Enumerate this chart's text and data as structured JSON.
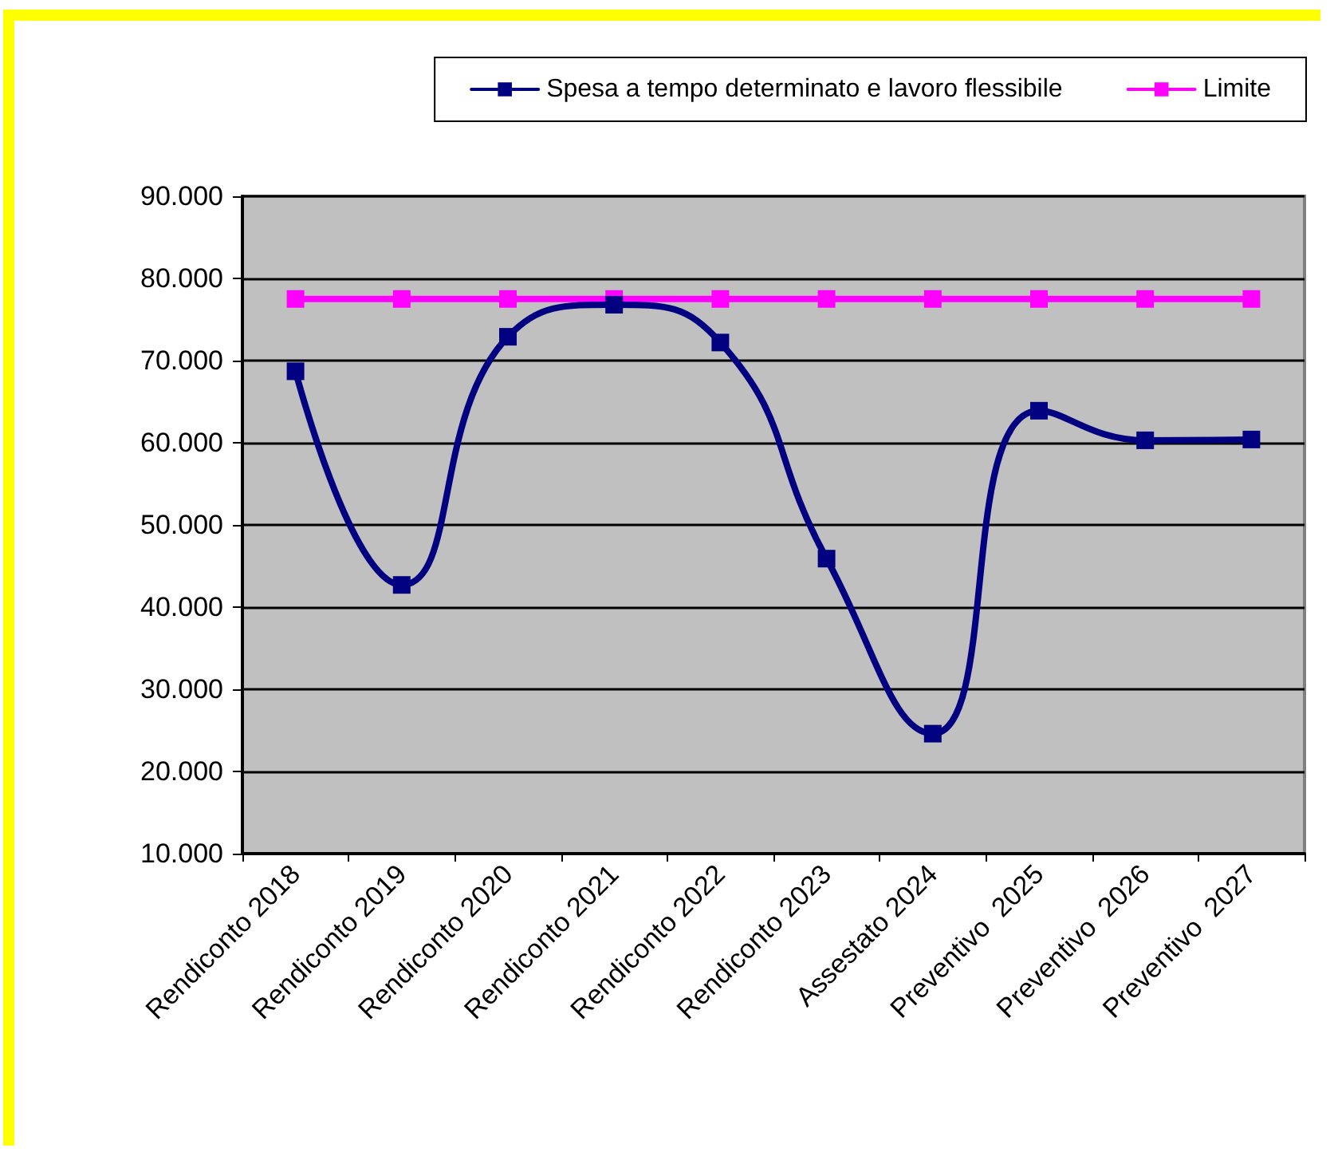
{
  "chart_data": {
    "type": "line",
    "categories": [
      "Rendiconto 2018",
      "Rendiconto 2019",
      "Rendiconto 2020",
      "Rendiconto 2021",
      "Rendiconto 2022",
      "Rendiconto 2023",
      "Assestato 2024",
      "Preventivo  2025",
      "Preventivo  2026",
      "Preventivo  2027"
    ],
    "series": [
      {
        "name": "Spesa a tempo determinato e lavoro flessibile",
        "color": "#000080",
        "values": [
          68700,
          42700,
          72900,
          76800,
          72200,
          45900,
          24600,
          63900,
          60300,
          60400
        ]
      },
      {
        "name": "Limite",
        "color": "#ff00ff",
        "values": [
          77500,
          77500,
          77500,
          77500,
          77500,
          77500,
          77500,
          77500,
          77500,
          77500
        ]
      }
    ],
    "ylim": [
      10000,
      90000
    ],
    "yticks": [
      {
        "value": 10000,
        "label": "10.000"
      },
      {
        "value": 20000,
        "label": "20.000"
      },
      {
        "value": 30000,
        "label": "30.000"
      },
      {
        "value": 40000,
        "label": "40.000"
      },
      {
        "value": 50000,
        "label": "50.000"
      },
      {
        "value": 60000,
        "label": "60.000"
      },
      {
        "value": 70000,
        "label": "70.000"
      },
      {
        "value": 80000,
        "label": "80.000"
      },
      {
        "value": 90000,
        "label": "90.000"
      }
    ],
    "grid": "y",
    "legend": "top right",
    "marker": "square",
    "line_style": "solid"
  }
}
